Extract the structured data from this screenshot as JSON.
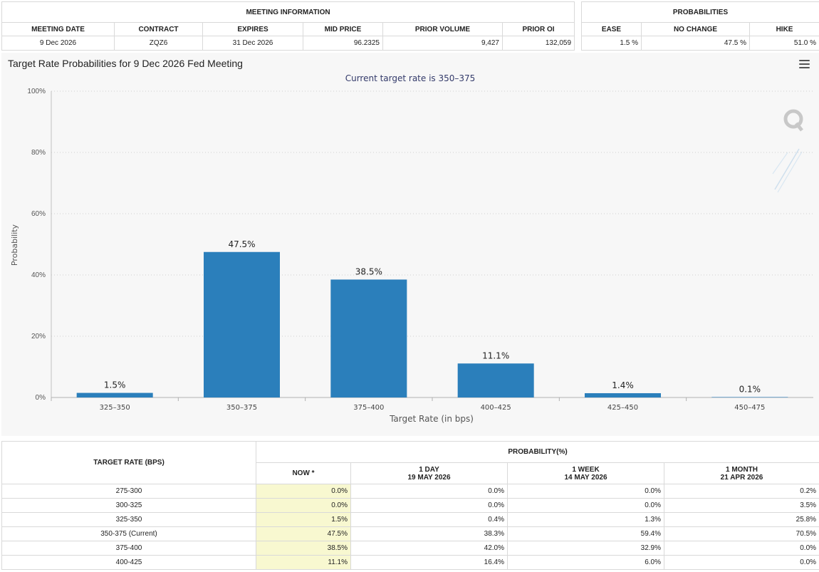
{
  "meeting_info": {
    "section_title": "MEETING INFORMATION",
    "headers": [
      "MEETING DATE",
      "CONTRACT",
      "EXPIRES",
      "MID PRICE",
      "PRIOR VOLUME",
      "PRIOR OI"
    ],
    "values": [
      "9 Dec 2026",
      "ZQZ6",
      "31 Dec 2026",
      "96.2325",
      "9,427",
      "132,059"
    ]
  },
  "probabilities": {
    "section_title": "PROBABILITIES",
    "headers": [
      "EASE",
      "NO CHANGE",
      "HIKE"
    ],
    "values": [
      "1.5 %",
      "47.5 %",
      "51.0 %"
    ]
  },
  "chart_data": {
    "type": "bar",
    "title": "Target Rate Probabilities for 9 Dec 2026 Fed Meeting",
    "subtitle": "Current target rate is 350–375",
    "xlabel": "Target Rate (in bps)",
    "ylabel": "Probability",
    "categories": [
      "325–350",
      "350–375",
      "375–400",
      "400–425",
      "425–450",
      "450–475"
    ],
    "values": [
      1.5,
      47.5,
      38.5,
      11.1,
      1.4,
      0.1
    ],
    "data_labels": [
      "1.5%",
      "47.5%",
      "38.5%",
      "11.1%",
      "1.4%",
      "0.1%"
    ],
    "ylim": [
      0,
      100
    ],
    "yticks": [
      "0%",
      "20%",
      "40%",
      "60%",
      "80%",
      "100%"
    ],
    "grid": true,
    "legend": "none",
    "bar_color": "#2b7fbb"
  },
  "rates_table": {
    "target_header": "TARGET RATE (BPS)",
    "prob_header": "PROBABILITY(%)",
    "columns": [
      {
        "line1": "NOW *",
        "line2": ""
      },
      {
        "line1": "1 DAY",
        "line2": "19 MAY 2026"
      },
      {
        "line1": "1 WEEK",
        "line2": "14 MAY 2026"
      },
      {
        "line1": "1 MONTH",
        "line2": "21 APR 2026"
      }
    ],
    "rows": [
      [
        "275-300",
        "0.0%",
        "0.0%",
        "0.0%",
        "0.2%"
      ],
      [
        "300-325",
        "0.0%",
        "0.0%",
        "0.0%",
        "3.5%"
      ],
      [
        "325-350",
        "1.5%",
        "0.4%",
        "1.3%",
        "25.8%"
      ],
      [
        "350-375 (Current)",
        "47.5%",
        "38.3%",
        "59.4%",
        "70.5%"
      ],
      [
        "375-400",
        "38.5%",
        "42.0%",
        "32.9%",
        "0.0%"
      ],
      [
        "400-425",
        "11.1%",
        "16.4%",
        "6.0%",
        "0.0%"
      ]
    ]
  }
}
